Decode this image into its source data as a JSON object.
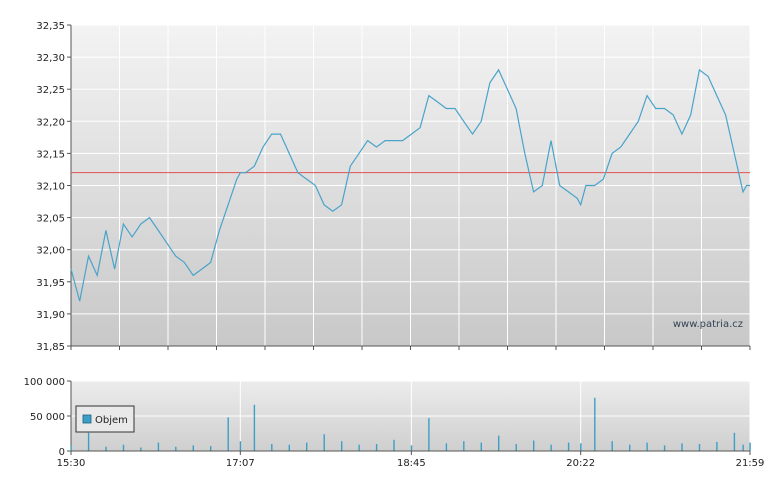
{
  "colors": {
    "line": "#4aa3cb",
    "reference_line": "#e05252",
    "volume": "#3b9fc8",
    "grid": "#ffffff",
    "axis": "#555555",
    "plot_bg_top": "#f2f2f2",
    "plot_bg_bottom": "#c9c9c9"
  },
  "chart_data": [
    {
      "type": "line",
      "title": "",
      "xlabel": "",
      "ylabel": "",
      "ylim": [
        31.85,
        32.35
      ],
      "xlim": [
        "15:30",
        "21:59"
      ],
      "y_ticks": [
        "32,35",
        "32,30",
        "32,25",
        "32,20",
        "32,15",
        "32,10",
        "32,05",
        "32,00",
        "31,95",
        "31,90",
        "31,85"
      ],
      "reference_value": 32.12,
      "watermark": "www.patria.cz",
      "grid": true,
      "series": [
        {
          "x": [
            "15:30",
            "15:35",
            "15:40",
            "15:45",
            "15:50",
            "15:55",
            "16:00",
            "16:05",
            "16:10",
            "16:15",
            "16:20",
            "16:25",
            "16:30",
            "16:35",
            "16:40",
            "16:45",
            "16:50",
            "16:55",
            "17:00",
            "17:05",
            "17:07",
            "17:10",
            "17:15",
            "17:20",
            "17:25",
            "17:30",
            "17:35",
            "17:40",
            "17:45",
            "17:50",
            "17:55",
            "18:00",
            "18:05",
            "18:10",
            "18:15",
            "18:20",
            "18:25",
            "18:30",
            "18:35",
            "18:40",
            "18:45",
            "18:50",
            "18:55",
            "19:00",
            "19:05",
            "19:10",
            "19:15",
            "19:20",
            "19:25",
            "19:30",
            "19:35",
            "19:40",
            "19:45",
            "19:50",
            "19:55",
            "20:00",
            "20:05",
            "20:10",
            "20:15",
            "20:20",
            "20:22",
            "20:25",
            "20:30",
            "20:35",
            "20:40",
            "20:45",
            "20:50",
            "20:55",
            "21:00",
            "21:05",
            "21:10",
            "21:15",
            "21:20",
            "21:25",
            "21:30",
            "21:35",
            "21:40",
            "21:45",
            "21:50",
            "21:55",
            "21:57",
            "21:59"
          ],
          "values": [
            31.97,
            31.92,
            31.99,
            31.96,
            32.03,
            31.97,
            32.04,
            32.02,
            32.04,
            32.05,
            32.03,
            32.01,
            31.99,
            31.98,
            31.96,
            31.97,
            31.98,
            32.03,
            32.07,
            32.11,
            32.12,
            32.12,
            32.13,
            32.16,
            32.18,
            32.18,
            32.15,
            32.12,
            32.11,
            32.1,
            32.07,
            32.06,
            32.07,
            32.13,
            32.15,
            32.17,
            32.16,
            32.17,
            32.17,
            32.17,
            32.18,
            32.19,
            32.24,
            32.23,
            32.22,
            32.22,
            32.2,
            32.18,
            32.2,
            32.26,
            32.28,
            32.25,
            32.22,
            32.15,
            32.09,
            32.1,
            32.17,
            32.1,
            32.09,
            32.08,
            32.07,
            32.1,
            32.1,
            32.11,
            32.15,
            32.16,
            32.18,
            32.2,
            32.24,
            32.22,
            32.22,
            32.21,
            32.18,
            32.21,
            32.28,
            32.27,
            32.24,
            32.21,
            32.15,
            32.09,
            32.1,
            32.1
          ]
        }
      ]
    },
    {
      "type": "bar",
      "title": "",
      "xlabel": "",
      "ylabel": "",
      "ylim": [
        0,
        100000
      ],
      "y_ticks": [
        "100 000",
        "50 000",
        "0"
      ],
      "x_ticks": [
        "15:30",
        "17:07",
        "18:45",
        "20:22",
        "21:59"
      ],
      "legend": [
        "Objem"
      ],
      "legend_position": "left",
      "grid": true,
      "series": [
        {
          "name": "Objem",
          "x": [
            "15:30",
            "15:40",
            "15:50",
            "16:00",
            "16:10",
            "16:20",
            "16:30",
            "16:40",
            "16:50",
            "17:00",
            "17:07",
            "17:15",
            "17:25",
            "17:35",
            "17:45",
            "17:55",
            "18:05",
            "18:15",
            "18:25",
            "18:35",
            "18:45",
            "18:55",
            "19:05",
            "19:15",
            "19:25",
            "19:35",
            "19:45",
            "19:55",
            "20:05",
            "20:15",
            "20:22",
            "20:30",
            "20:40",
            "20:50",
            "21:00",
            "21:10",
            "21:20",
            "21:30",
            "21:40",
            "21:50",
            "21:55",
            "21:59"
          ],
          "values": [
            8000,
            26000,
            6000,
            9000,
            5000,
            12000,
            6000,
            8000,
            7000,
            48000,
            14000,
            66000,
            10000,
            9000,
            12000,
            24000,
            14000,
            9000,
            10000,
            16000,
            8000,
            47000,
            11000,
            14000,
            12000,
            22000,
            10000,
            15000,
            9000,
            12000,
            11000,
            76000,
            14000,
            9000,
            12000,
            8000,
            11000,
            10000,
            13000,
            26000,
            9000,
            12000
          ]
        }
      ]
    }
  ]
}
